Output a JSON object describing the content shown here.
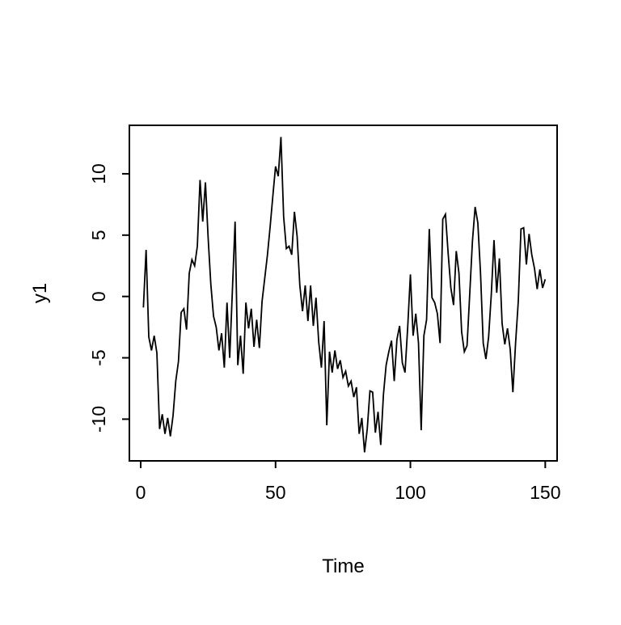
{
  "figure": {
    "background": "#ffffff",
    "line_color": "#000000"
  },
  "chart_data": {
    "type": "line",
    "title": "",
    "xlabel": "Time",
    "ylabel": "y1",
    "x_start": 1,
    "x_step": 1,
    "xticks": [
      0,
      50,
      100,
      150
    ],
    "yticks": [
      -10,
      -5,
      0,
      5,
      10
    ],
    "xlim": [
      -4.2,
      154.4
    ],
    "ylim": [
      -13.4,
      13.95
    ],
    "grid": false,
    "legend": "none",
    "values": [
      -0.9,
      3.8,
      -3.3,
      -4.4,
      -3.2,
      -4.6,
      -10.8,
      -9.6,
      -11.2,
      -9.9,
      -11.4,
      -9.7,
      -6.9,
      -5.3,
      -1.3,
      -1.0,
      -2.7,
      1.9,
      3.0,
      2.5,
      4.1,
      9.5,
      6.1,
      9.3,
      4.8,
      1.0,
      -1.6,
      -2.5,
      -4.4,
      -3.0,
      -5.8,
      -0.5,
      -5.0,
      0.5,
      6.1,
      -5.6,
      -3.2,
      -6.3,
      -0.5,
      -2.6,
      -1.0,
      -4.1,
      -1.9,
      -4.2,
      -0.4,
      1.5,
      3.4,
      5.7,
      8.2,
      10.6,
      9.8,
      13.0,
      6.5,
      3.9,
      4.1,
      3.4,
      6.9,
      4.9,
      0.9,
      -1.2,
      0.9,
      -2.0,
      0.9,
      -2.4,
      -0.1,
      -3.7,
      -5.8,
      -2.0,
      -10.5,
      -4.5,
      -6.2,
      -4.4,
      -5.9,
      -5.2,
      -6.6,
      -6.1,
      -7.3,
      -6.9,
      -8.2,
      -7.4,
      -11.2,
      -9.9,
      -12.7,
      -10.8,
      -7.7,
      -7.8,
      -11.1,
      -9.4,
      -12.1,
      -8.0,
      -5.6,
      -4.5,
      -3.6,
      -6.9,
      -3.5,
      -2.4,
      -5.4,
      -6.2,
      -2.5,
      1.8,
      -3.2,
      -1.4,
      -3.8,
      -10.9,
      -3.2,
      -1.9,
      5.5,
      -0.1,
      -0.5,
      -1.4,
      -3.8,
      6.3,
      6.7,
      3.5,
      0.7,
      -0.7,
      3.7,
      1.9,
      -2.9,
      -4.5,
      -4.0,
      0.2,
      4.5,
      7.3,
      6.0,
      1.9,
      -3.8,
      -5.1,
      -3.3,
      0.2,
      4.6,
      0.3,
      3.1,
      -2.2,
      -3.9,
      -2.6,
      -4.3,
      -7.8,
      -3.8,
      -0.4,
      5.5,
      5.6,
      2.6,
      5.1,
      3.4,
      2.3,
      0.6,
      2.2,
      0.7,
      1.4
    ]
  }
}
